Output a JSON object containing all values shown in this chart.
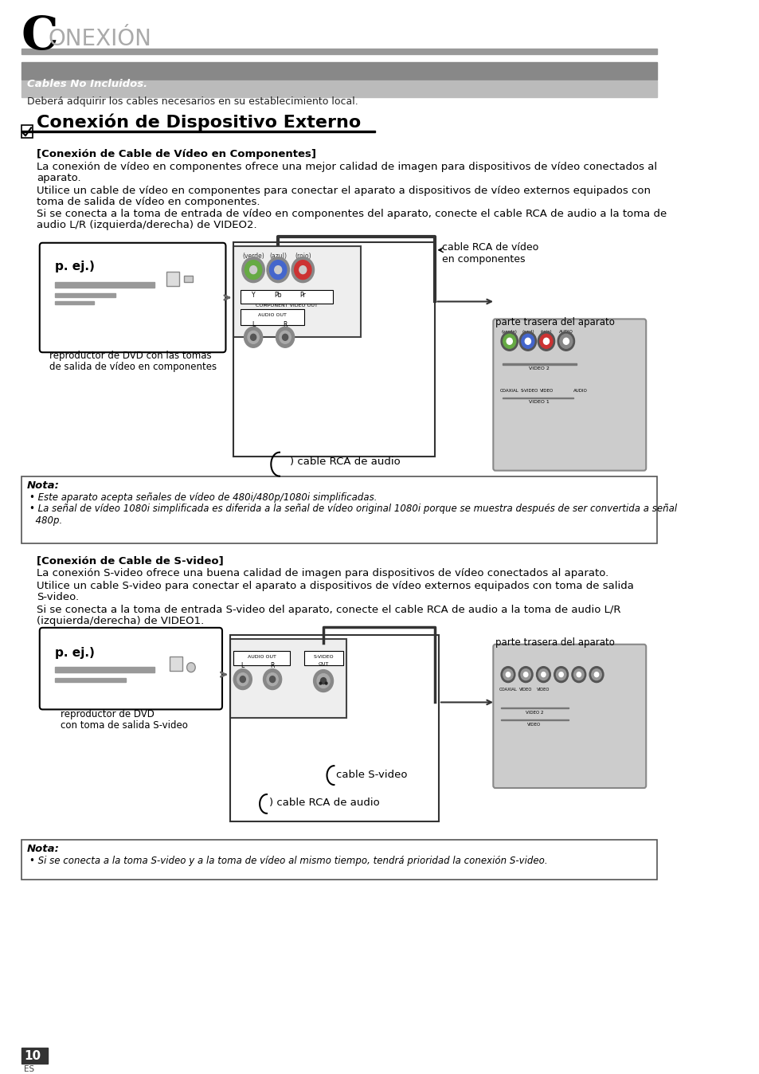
{
  "bg_color": "#ffffff",
  "title_C": "C",
  "title_rest": "ONEXIÓN",
  "cables_title": "Cables No Incluidos.",
  "cables_subtitle": "Deberá adquirir los cables necesarios en su establecimiento local.",
  "section_title": "Conexión de Dispositivo Externo",
  "sec1_title": "[Conexión de Cable de Vídeo en Componentes]",
  "sec1_p1a": "La conexión de vídeo en componentes ofrece una mejor calidad de imagen para dispositivos de vídeo conectados al",
  "sec1_p1b": "aparato.",
  "sec1_p2a": "Utilice un cable de vídeo en componentes para conectar el aparato a dispositivos de vídeo externos equipados con",
  "sec1_p2b": "toma de salida de vídeo en componentes.",
  "sec1_p3a": "Si se conecta a la toma de entrada de vídeo en componentes del aparato, conecte el cable RCA de audio a la toma de",
  "sec1_p3b": "audio L/R (izquierda/derecha) de VIDEO2.",
  "label_cable_rca_video": "cable RCA de vídeo\nen componentes",
  "label_parte_trasera1": "parte trasera del aparato",
  "label_pej1": "p. ej.)",
  "label_dvd1a": "reproductor de DVD con las tomas",
  "label_dvd1b": "de salida de vídeo en componentes",
  "label_cable_rca_audio1": "cable RCA de audio",
  "nota1_title": "Nota:",
  "nota1_p1": "• Este aparato acepta señales de vídeo de 480i/480p/1080i simplificadas.",
  "nota1_p2a": "• La señal de vídeo 1080i simplificada es diferida a la señal de vídeo original 1080i porque se muestra después de ser convertida a señal",
  "nota1_p2b": "  480p.",
  "sec2_title": "[Conexión de Cable de S-video]",
  "sec2_p1": "La conexión S-video ofrece una buena calidad de imagen para dispositivos de vídeo conectados al aparato.",
  "sec2_p2a": "Utilice un cable S-video para conectar el aparato a dispositivos de vídeo externos equipados con toma de salida",
  "sec2_p2b": "S-video.",
  "sec2_p3a": "Si se conecta a la toma de entrada S-video del aparato, conecte el cable RCA de audio a la toma de audio L/R",
  "sec2_p3b": "(izquierda/derecha) de VIDEO1.",
  "label_pej2": "p. ej.)",
  "label_dvd2a": "reproductor de DVD",
  "label_dvd2b": "con toma de salida S-video",
  "label_parte_trasera2": "parte trasera del aparato",
  "label_cable_svideo": "cable S-video",
  "label_cable_rca_audio2": "cable RCA de audio",
  "nota2_title": "Nota:",
  "nota2_p1": "• Si se conecta a la toma S-video y a la toma de vídeo al mismo tiempo, tendrá prioridad la conexión S-video.",
  "page_num": "10",
  "page_lang": "ES"
}
